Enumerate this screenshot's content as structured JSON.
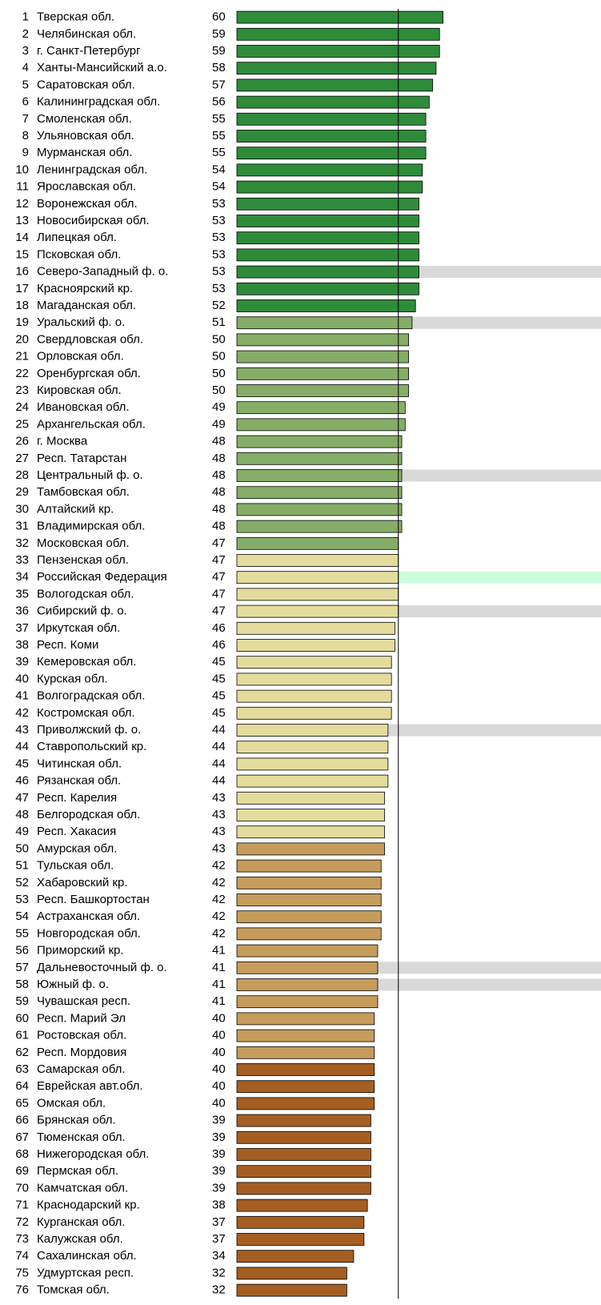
{
  "chart_data": {
    "type": "ranked_bar",
    "ranks": [
      1,
      2,
      3,
      4,
      5,
      6,
      7,
      8,
      9,
      10,
      11,
      12,
      13,
      14,
      15,
      16,
      17,
      18,
      19,
      20,
      21,
      22,
      23,
      24,
      25,
      26,
      27,
      28,
      29,
      30,
      31,
      32,
      33,
      34,
      35,
      36,
      37,
      38,
      39,
      40,
      41,
      42,
      43,
      44,
      45,
      46,
      47,
      48,
      49,
      50,
      51,
      52,
      53,
      54,
      55,
      56,
      57,
      58,
      59,
      60,
      61,
      62,
      63,
      64,
      65,
      66,
      67,
      68,
      69,
      70,
      71,
      72,
      73,
      74,
      75,
      76
    ],
    "categories": [
      "Тверская обл.",
      "Челябинская обл.",
      "г. Санкт-Петербург",
      "Ханты-Мансийский а.о.",
      "Саратовская обл.",
      "Калининградская обл.",
      "Смоленская обл.",
      "Ульяновская обл.",
      "Мурманская обл.",
      "Ленинградская обл.",
      "Ярославская обл.",
      "Воронежская обл.",
      "Новосибирская обл.",
      "Липецкая обл.",
      "Псковская обл.",
      "Северо-Западный ф. о.",
      "Красноярский кр.",
      "Магаданская обл.",
      "Уральский ф. о.",
      "Свердловская обл.",
      "Орловская обл.",
      "Оренбургская обл.",
      "Кировская обл.",
      "Ивановская обл.",
      "Архангельская обл.",
      "г. Москва",
      "Респ. Татарстан",
      "Центральный ф. о.",
      "Тамбовская обл.",
      "Алтайский кр.",
      "Владимирская обл.",
      "Московская обл.",
      "Пензенская обл.",
      "Российская Федерация",
      "Вологодская обл.",
      "Сибирский ф. о.",
      "Иркутская обл.",
      "Респ. Коми",
      "Кемеровская обл.",
      "Курская обл.",
      "Волгоградская обл.",
      "Костромская обл.",
      "Приволжский ф. о.",
      "Ставропольский кр.",
      "Читинская обл.",
      "Рязанская обл.",
      "Респ. Карелия",
      "Белгородская обл.",
      "Респ. Хакасия",
      "Амурская обл.",
      "Тульская обл.",
      "Хабаровский кр.",
      "Респ. Башкортостан",
      "Астраханская обл.",
      "Новгородская обл.",
      "Приморский кр.",
      "Дальневосточный ф. о.",
      "Южный ф. о.",
      "Чувашская респ.",
      "Респ. Марий Эл",
      "Ростовская обл.",
      "Респ. Мордовия",
      "Самарская обл.",
      "Еврейская авт.обл.",
      "Омская обл.",
      "Брянская обл.",
      "Тюменская обл.",
      "Нижегородская обл.",
      "Пермская обл.",
      "Камчатская обл.",
      "Краснодарский кр.",
      "Курганская обл.",
      "Калужская обл.",
      "Сахалинская обл.",
      "Удмуртская респ.",
      "Томская обл."
    ],
    "values": [
      60,
      59,
      59,
      58,
      57,
      56,
      55,
      55,
      55,
      54,
      54,
      53,
      53,
      53,
      53,
      53,
      53,
      52,
      51,
      50,
      50,
      50,
      50,
      49,
      49,
      48,
      48,
      48,
      48,
      48,
      48,
      47,
      47,
      47,
      47,
      47,
      46,
      46,
      45,
      45,
      45,
      45,
      44,
      44,
      44,
      44,
      43,
      43,
      43,
      43,
      42,
      42,
      42,
      42,
      42,
      41,
      41,
      41,
      41,
      40,
      40,
      40,
      40,
      40,
      40,
      39,
      39,
      39,
      39,
      39,
      38,
      37,
      37,
      34,
      32,
      32
    ],
    "colors": [
      "#2e8b3a",
      "#2e8b3a",
      "#2e8b3a",
      "#2e8b3a",
      "#2e8b3a",
      "#2e8b3a",
      "#2e8b3a",
      "#2e8b3a",
      "#2e8b3a",
      "#2e8b3a",
      "#2e8b3a",
      "#2e8b3a",
      "#2e8b3a",
      "#2e8b3a",
      "#2e8b3a",
      "#2e8b3a",
      "#2e8b3a",
      "#2e8b3a",
      "#86ad68",
      "#86ad68",
      "#86ad68",
      "#86ad68",
      "#86ad68",
      "#86ad68",
      "#86ad68",
      "#86ad68",
      "#86ad68",
      "#86ad68",
      "#86ad68",
      "#86ad68",
      "#86ad68",
      "#86ad68",
      "#e3dc9c",
      "#e3dc9c",
      "#e3dc9c",
      "#e3dc9c",
      "#e3dc9c",
      "#e3dc9c",
      "#e3dc9c",
      "#e3dc9c",
      "#e3dc9c",
      "#e3dc9c",
      "#e3dc9c",
      "#e3dc9c",
      "#e3dc9c",
      "#e3dc9c",
      "#e3dc9c",
      "#e3dc9c",
      "#e3dc9c",
      "#c59c5c",
      "#c59c5c",
      "#c59c5c",
      "#c59c5c",
      "#c59c5c",
      "#c59c5c",
      "#c59c5c",
      "#c59c5c",
      "#c59c5c",
      "#c59c5c",
      "#c59c5c",
      "#c59c5c",
      "#c59c5c",
      "#a55e22",
      "#a55e22",
      "#a55e22",
      "#a55e22",
      "#a55e22",
      "#a55e22",
      "#a55e22",
      "#a55e22",
      "#a55e22",
      "#a55e22",
      "#a55e22",
      "#a55e22",
      "#a55e22",
      "#a55e22"
    ],
    "row_highlights": [
      null,
      null,
      null,
      null,
      null,
      null,
      null,
      null,
      null,
      null,
      null,
      null,
      null,
      null,
      null,
      "#d9d9d9",
      null,
      null,
      "#d9d9d9",
      null,
      null,
      null,
      null,
      null,
      null,
      null,
      null,
      "#d9d9d9",
      null,
      null,
      null,
      null,
      null,
      "#ccffdd",
      null,
      "#d9d9d9",
      null,
      null,
      null,
      null,
      null,
      null,
      "#d9d9d9",
      null,
      null,
      null,
      null,
      null,
      null,
      null,
      null,
      null,
      null,
      null,
      null,
      null,
      "#d9d9d9",
      "#d9d9d9",
      null,
      null,
      null,
      null,
      null,
      null,
      null,
      null,
      null,
      null,
      null,
      null,
      null,
      null,
      null,
      null,
      null,
      null
    ],
    "reference_line": 47,
    "xlim": [
      0,
      106
    ]
  }
}
